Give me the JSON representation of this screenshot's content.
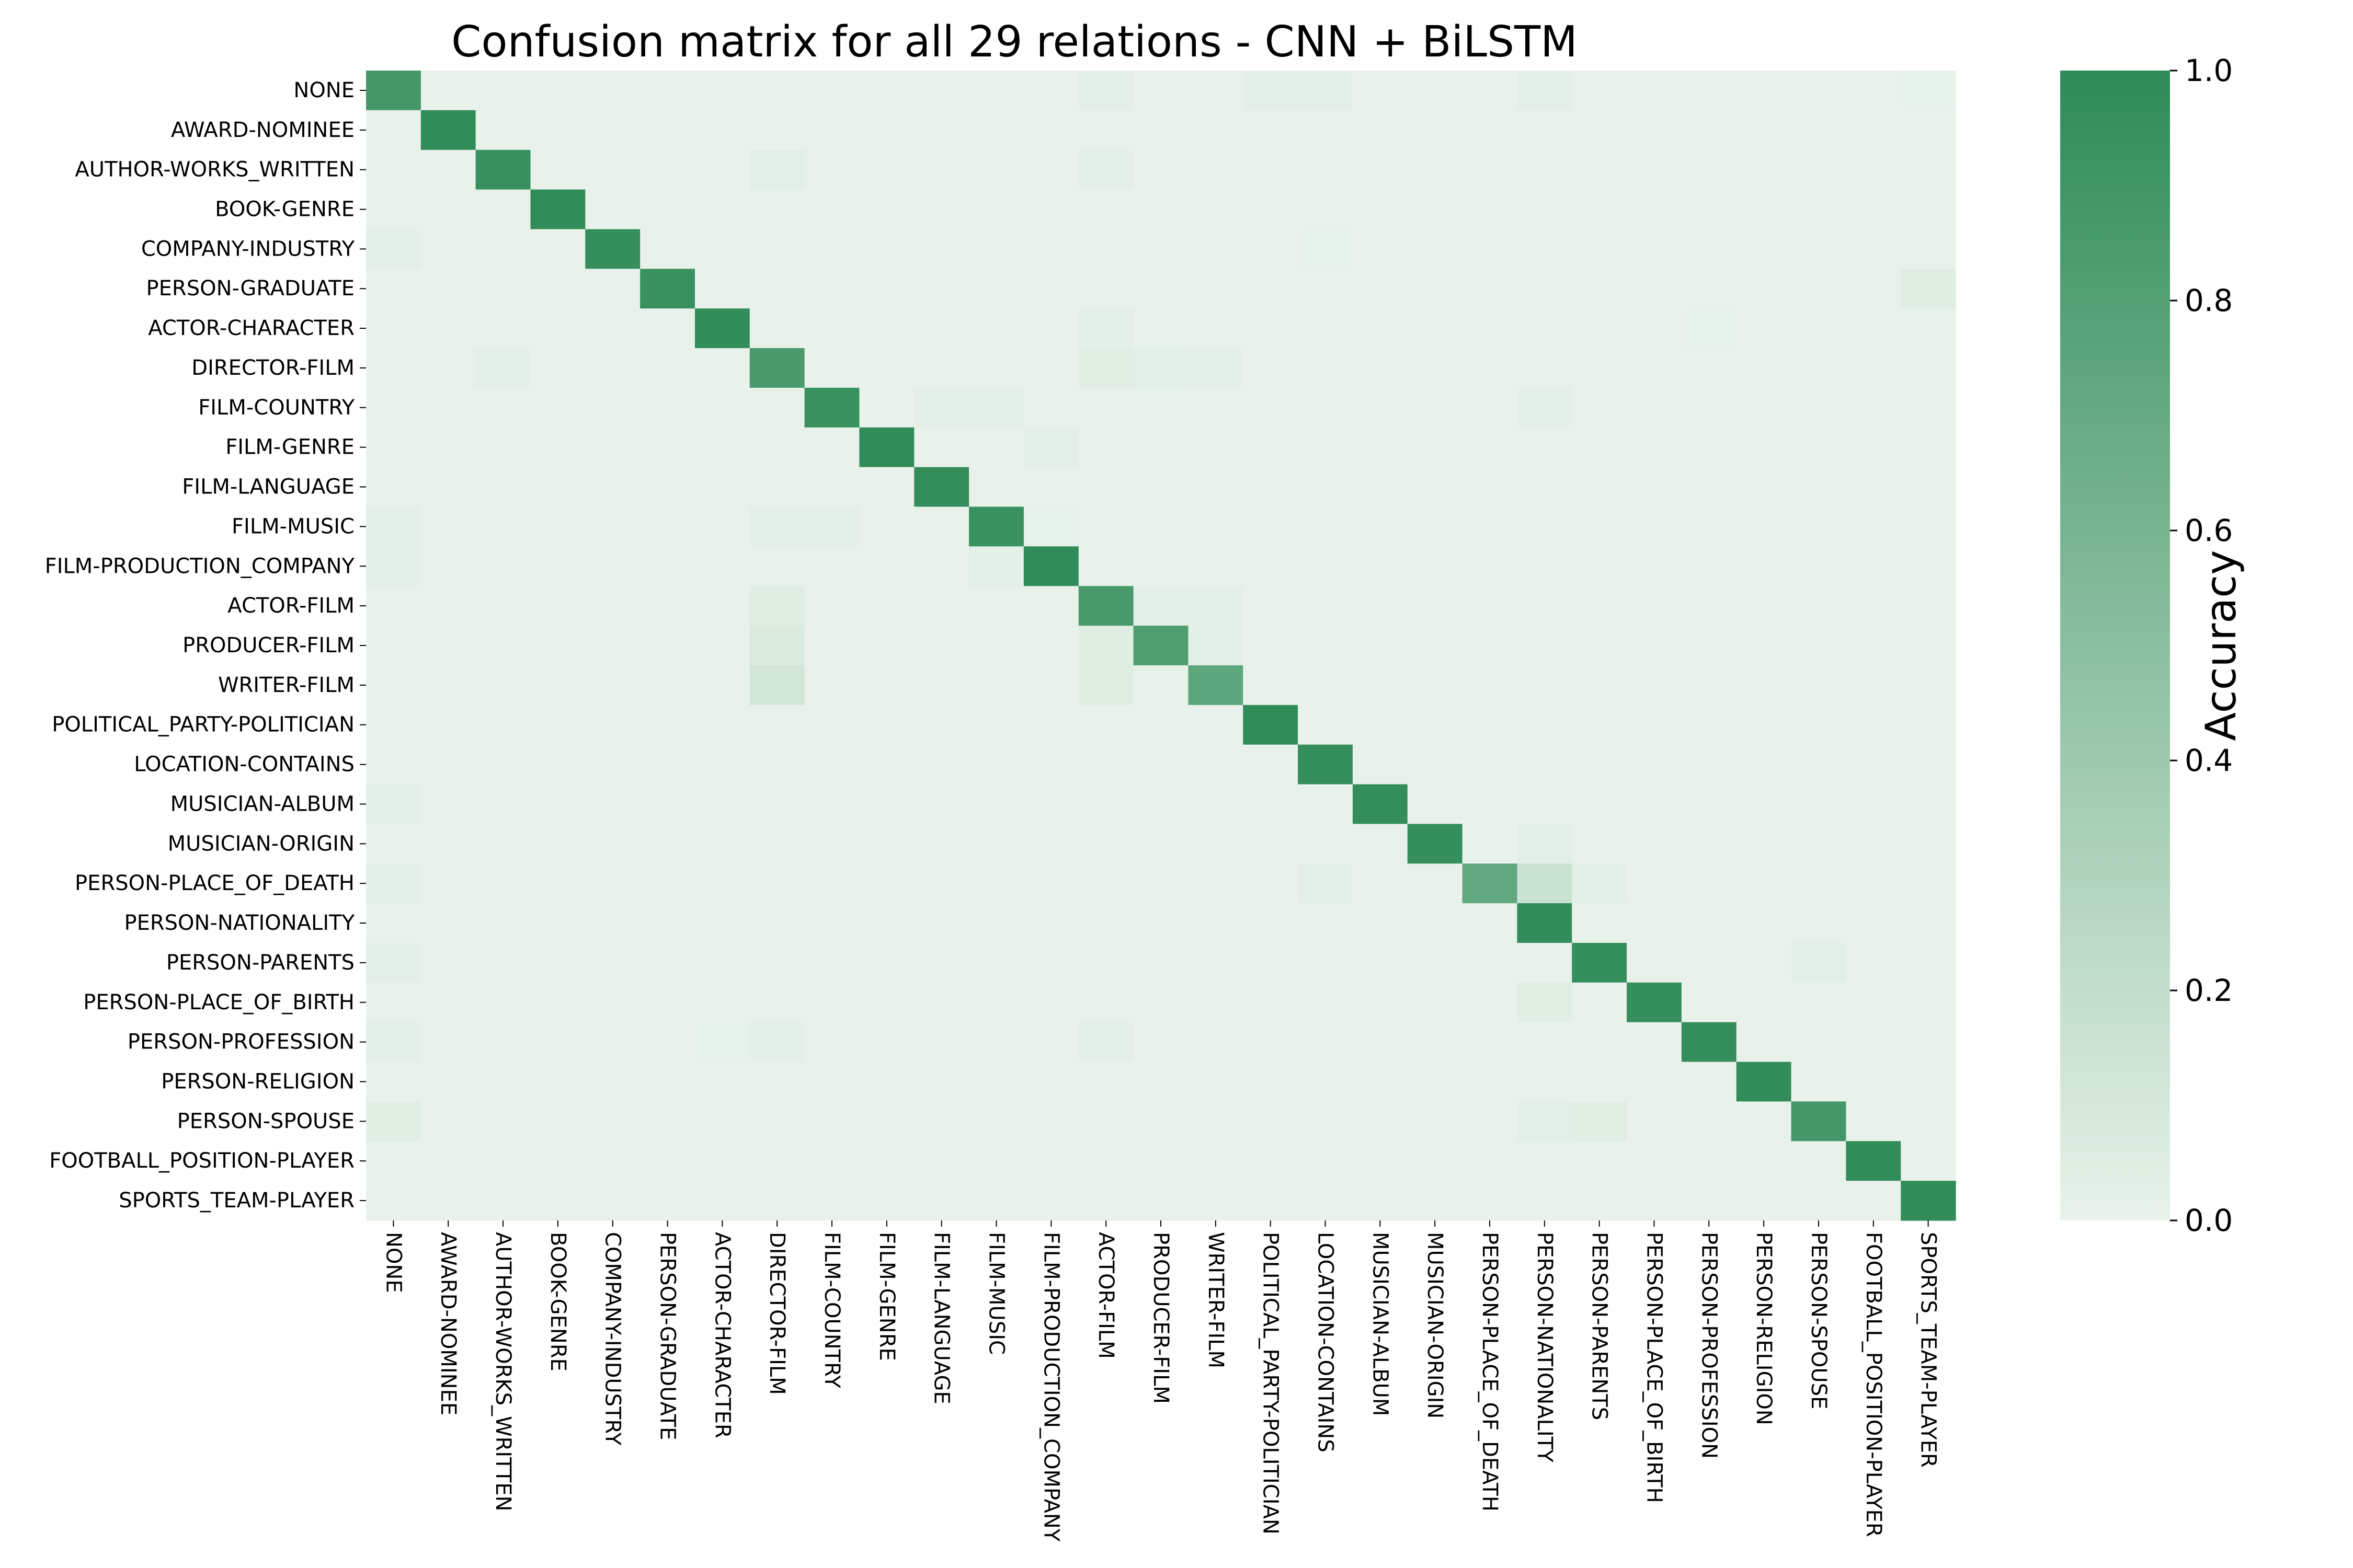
{
  "chart_data": {
    "type": "heatmap",
    "title": "Confusion matrix for all 29 relations - CNN + BiLSTM",
    "labels": [
      "NONE",
      "AWARD-NOMINEE",
      "AUTHOR-WORKS_WRITTEN",
      "BOOK-GENRE",
      "COMPANY-INDUSTRY",
      "PERSON-GRADUATE",
      "ACTOR-CHARACTER",
      "DIRECTOR-FILM",
      "FILM-COUNTRY",
      "FILM-GENRE",
      "FILM-LANGUAGE",
      "FILM-MUSIC",
      "FILM-PRODUCTION_COMPANY",
      "ACTOR-FILM",
      "PRODUCER-FILM",
      "WRITER-FILM",
      "POLITICAL_PARTY-POLITICIAN",
      "LOCATION-CONTAINS",
      "MUSICIAN-ALBUM",
      "MUSICIAN-ORIGIN",
      "PERSON-PLACE_OF_DEATH",
      "PERSON-NATIONALITY",
      "PERSON-PARENTS",
      "PERSON-PLACE_OF_BIRTH",
      "PERSON-PROFESSION",
      "PERSON-RELIGION",
      "PERSON-SPOUSE",
      "FOOTBALL_POSITION-PLAYER",
      "SPORTS_TEAM-PLAYER"
    ],
    "diagonal": [
      0.88,
      0.99,
      0.95,
      0.99,
      0.96,
      0.94,
      0.98,
      0.85,
      0.94,
      0.99,
      0.97,
      0.94,
      0.99,
      0.86,
      0.82,
      0.74,
      0.99,
      0.97,
      0.97,
      0.96,
      0.72,
      0.98,
      0.96,
      0.96,
      0.97,
      0.98,
      0.88,
      0.99,
      0.99
    ],
    "off_diagonal": [
      {
        "row": 0,
        "col": 13,
        "value": 0.02
      },
      {
        "row": 0,
        "col": 16,
        "value": 0.02
      },
      {
        "row": 0,
        "col": 17,
        "value": 0.02
      },
      {
        "row": 0,
        "col": 21,
        "value": 0.02
      },
      {
        "row": 0,
        "col": 28,
        "value": 0.01
      },
      {
        "row": 2,
        "col": 7,
        "value": 0.03
      },
      {
        "row": 2,
        "col": 13,
        "value": 0.02
      },
      {
        "row": 4,
        "col": 0,
        "value": 0.02
      },
      {
        "row": 4,
        "col": 17,
        "value": 0.01
      },
      {
        "row": 5,
        "col": 28,
        "value": 0.05
      },
      {
        "row": 6,
        "col": 13,
        "value": 0.02
      },
      {
        "row": 6,
        "col": 24,
        "value": 0.01
      },
      {
        "row": 7,
        "col": 2,
        "value": 0.02
      },
      {
        "row": 7,
        "col": 13,
        "value": 0.04
      },
      {
        "row": 7,
        "col": 14,
        "value": 0.03
      },
      {
        "row": 7,
        "col": 15,
        "value": 0.02
      },
      {
        "row": 8,
        "col": 10,
        "value": 0.02
      },
      {
        "row": 8,
        "col": 11,
        "value": 0.02
      },
      {
        "row": 8,
        "col": 21,
        "value": 0.02
      },
      {
        "row": 9,
        "col": 12,
        "value": 0.02
      },
      {
        "row": 11,
        "col": 0,
        "value": 0.02
      },
      {
        "row": 11,
        "col": 7,
        "value": 0.02
      },
      {
        "row": 11,
        "col": 8,
        "value": 0.02
      },
      {
        "row": 11,
        "col": 12,
        "value": 0.01
      },
      {
        "row": 12,
        "col": 0,
        "value": 0.02
      },
      {
        "row": 12,
        "col": 11,
        "value": 0.02
      },
      {
        "row": 13,
        "col": 7,
        "value": 0.05
      },
      {
        "row": 13,
        "col": 14,
        "value": 0.02
      },
      {
        "row": 13,
        "col": 15,
        "value": 0.02
      },
      {
        "row": 14,
        "col": 7,
        "value": 0.07
      },
      {
        "row": 14,
        "col": 13,
        "value": 0.05
      },
      {
        "row": 14,
        "col": 15,
        "value": 0.02
      },
      {
        "row": 15,
        "col": 7,
        "value": 0.12
      },
      {
        "row": 15,
        "col": 13,
        "value": 0.05
      },
      {
        "row": 18,
        "col": 0,
        "value": 0.02
      },
      {
        "row": 19,
        "col": 21,
        "value": 0.03
      },
      {
        "row": 20,
        "col": 0,
        "value": 0.02
      },
      {
        "row": 20,
        "col": 17,
        "value": 0.02
      },
      {
        "row": 20,
        "col": 21,
        "value": 0.16
      },
      {
        "row": 20,
        "col": 22,
        "value": 0.02
      },
      {
        "row": 22,
        "col": 0,
        "value": 0.02
      },
      {
        "row": 22,
        "col": 26,
        "value": 0.03
      },
      {
        "row": 23,
        "col": 21,
        "value": 0.04
      },
      {
        "row": 24,
        "col": 0,
        "value": 0.02
      },
      {
        "row": 24,
        "col": 6,
        "value": 0.01
      },
      {
        "row": 24,
        "col": 7,
        "value": 0.02
      },
      {
        "row": 24,
        "col": 13,
        "value": 0.02
      },
      {
        "row": 26,
        "col": 0,
        "value": 0.04
      },
      {
        "row": 26,
        "col": 21,
        "value": 0.03
      },
      {
        "row": 26,
        "col": 22,
        "value": 0.04
      }
    ],
    "colorbar": {
      "label": "Accuracy",
      "range": [
        0.0,
        1.0
      ],
      "ticks": [
        "0.0",
        "0.2",
        "0.4",
        "0.6",
        "0.8",
        "1.0"
      ],
      "color_low": "#e8f2ea",
      "color_high": "#2e8b57"
    },
    "grid": false,
    "legend": "colorbar-right"
  }
}
